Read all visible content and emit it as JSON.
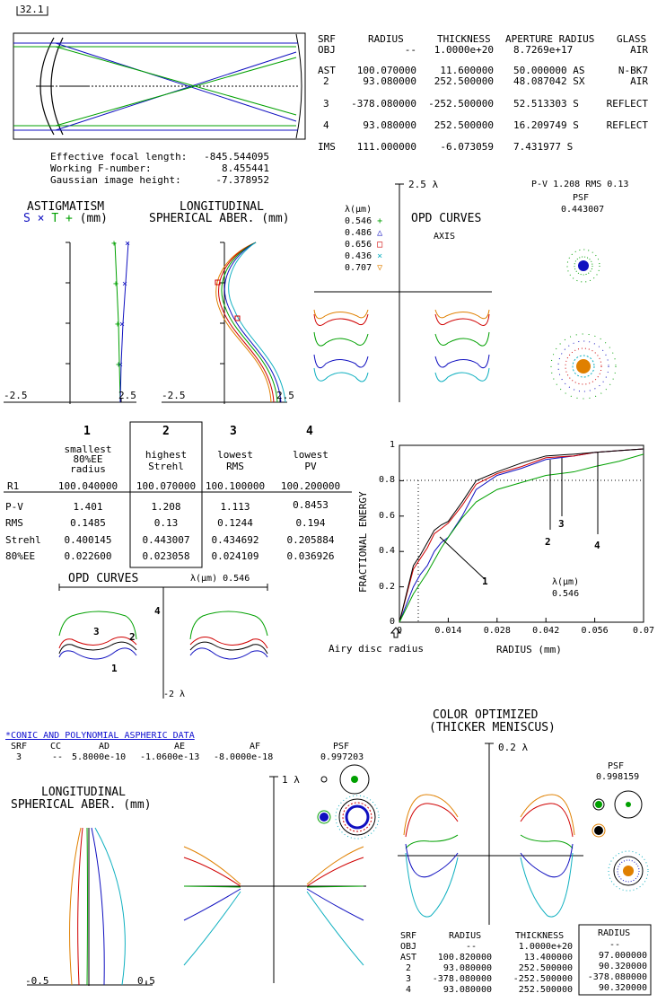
{
  "scale_label": "32.1",
  "prescription": {
    "headers": [
      "SRF",
      "RADIUS",
      "THICKNESS",
      "APERTURE RADIUS",
      "GLASS"
    ],
    "rows": [
      [
        "OBJ",
        "--",
        "1.0000e+20",
        "8.7269e+17",
        "AIR"
      ],
      [
        "AST",
        "100.070000",
        "11.600000",
        "50.000000 AS",
        "N-BK7"
      ],
      [
        "2",
        "93.080000",
        "252.500000",
        "48.087042 SX",
        "AIR"
      ],
      [
        "3",
        "-378.080000",
        "-252.500000",
        "52.513303 S",
        "REFLECT"
      ],
      [
        "4",
        "93.080000",
        "252.500000",
        "16.209749 S",
        "REFLECT"
      ],
      [
        "IMS",
        "111.000000",
        "-6.073059",
        "7.431977 S",
        ""
      ]
    ]
  },
  "system_props": [
    {
      "label": "Effective focal length:",
      "value": "-845.544095"
    },
    {
      "label": "Working F-number:",
      "value": "8.455441"
    },
    {
      "label": "Gaussian image height:",
      "value": "-7.378952"
    }
  ],
  "astig": {
    "title": "ASTIGMATISM",
    "legend_s": "S",
    "legend_x": "×",
    "legend_t": "T",
    "legend_plus": "+",
    "units": "(mm)",
    "xmin": "-2.5",
    "xmax": "2.5"
  },
  "lsa1": {
    "title1": "LONGITUDINAL",
    "title2": "SPHERICAL ABER.",
    "units": "(mm)",
    "xmin": "-2.5",
    "xmax": "2.5"
  },
  "opd1": {
    "scale": "2.5 λ",
    "title": "OPD CURVES",
    "subtitle": "AXIS",
    "lambda_label": "λ(μm)",
    "wavelengths": [
      {
        "value": "0.546",
        "sym": "+",
        "color": "#00a000"
      },
      {
        "value": "0.486",
        "sym": "△",
        "color": "#1010c0"
      },
      {
        "value": "0.656",
        "sym": "□",
        "color": "#d00000"
      },
      {
        "value": "0.436",
        "sym": "×",
        "color": "#10b0c0"
      },
      {
        "value": "0.707",
        "sym": "▽",
        "color": "#e08000"
      }
    ]
  },
  "psf1": {
    "pv_rms": "P-V 1.208 RMS 0.13",
    "title": "PSF",
    "strehl": "0.443007"
  },
  "compare": {
    "cols": [
      {
        "num": "1",
        "desc": [
          "smallest",
          "80%EE",
          "radius"
        ]
      },
      {
        "num": "2",
        "desc": [
          "highest",
          "Strehl"
        ]
      },
      {
        "num": "3",
        "desc": [
          "lowest",
          "RMS"
        ]
      },
      {
        "num": "4",
        "desc": [
          "lowest",
          "PV"
        ]
      }
    ],
    "rows": [
      {
        "label": "R1",
        "values": [
          "100.040000",
          "100.070000",
          "100.100000",
          "100.200000"
        ]
      },
      {
        "label": "P-V",
        "values": [
          "1.401",
          "1.208",
          "1.113",
          "0.8453"
        ]
      },
      {
        "label": "RMS",
        "values": [
          "0.1485",
          "0.13",
          "0.1244",
          "0.194"
        ]
      },
      {
        "label": "Strehl",
        "values": [
          "0.400145",
          "0.443007",
          "0.434692",
          "0.205884"
        ]
      },
      {
        "label": "80%EE",
        "values": [
          "0.022600",
          "0.023058",
          "0.024109",
          "0.036926"
        ]
      }
    ]
  },
  "opd2": {
    "title": "OPD CURVES",
    "lambda": "λ(μm) 0.546",
    "scale": "-2 λ",
    "labels": [
      "4",
      "3",
      "2",
      "1"
    ]
  },
  "ee": {
    "ylabel": "FRACTIONAL ENERGY",
    "xlabel": "RADIUS (mm)",
    "airy": "Airy disc radius",
    "yticks": [
      "0",
      "0.2",
      "0.4",
      "0.6",
      "0.8",
      "1"
    ],
    "xticks": [
      "0",
      "0.014",
      "0.028",
      "0.042",
      "0.056",
      "0.07"
    ],
    "lambda": "λ(μm)",
    "lambda_val": "0.546",
    "curve_labels": [
      "1",
      "2",
      "3",
      "4"
    ]
  },
  "chart_data": {
    "type": "line",
    "xlabel": "RADIUS (mm)",
    "ylabel": "FRACTIONAL ENERGY",
    "xlim": [
      0,
      0.07
    ],
    "ylim": [
      0,
      1
    ],
    "series": [
      {
        "name": "1",
        "color": "#1010c0",
        "x": [
          0,
          0.002,
          0.004,
          0.006,
          0.008,
          0.01,
          0.012,
          0.014,
          0.018,
          0.022,
          0.028,
          0.035,
          0.042,
          0.05,
          0.056,
          0.063,
          0.07
        ],
        "y": [
          0,
          0.1,
          0.2,
          0.27,
          0.32,
          0.4,
          0.45,
          0.48,
          0.6,
          0.75,
          0.83,
          0.87,
          0.92,
          0.94,
          0.96,
          0.97,
          0.98
        ]
      },
      {
        "name": "2",
        "color": "#d00000",
        "x": [
          0,
          0.002,
          0.004,
          0.006,
          0.008,
          0.01,
          0.012,
          0.014,
          0.018,
          0.022,
          0.028,
          0.035,
          0.042,
          0.05,
          0.056,
          0.063,
          0.07
        ],
        "y": [
          0,
          0.15,
          0.3,
          0.36,
          0.42,
          0.5,
          0.53,
          0.56,
          0.66,
          0.78,
          0.84,
          0.88,
          0.93,
          0.94,
          0.96,
          0.97,
          0.98
        ]
      },
      {
        "name": "3",
        "color": "#000000",
        "x": [
          0,
          0.002,
          0.004,
          0.006,
          0.008,
          0.01,
          0.012,
          0.014,
          0.018,
          0.022,
          0.028,
          0.035,
          0.042,
          0.05,
          0.056,
          0.063,
          0.07
        ],
        "y": [
          0,
          0.16,
          0.32,
          0.38,
          0.45,
          0.52,
          0.55,
          0.57,
          0.68,
          0.8,
          0.85,
          0.9,
          0.94,
          0.95,
          0.96,
          0.97,
          0.98
        ]
      },
      {
        "name": "4",
        "color": "#00a000",
        "x": [
          0,
          0.002,
          0.004,
          0.006,
          0.008,
          0.01,
          0.012,
          0.014,
          0.018,
          0.022,
          0.028,
          0.035,
          0.042,
          0.05,
          0.056,
          0.063,
          0.07
        ],
        "y": [
          0,
          0.08,
          0.16,
          0.22,
          0.28,
          0.35,
          0.42,
          0.48,
          0.59,
          0.68,
          0.75,
          0.79,
          0.83,
          0.85,
          0.88,
          0.91,
          0.95
        ]
      }
    ]
  },
  "asphere": {
    "title": "*CONIC AND POLYNOMIAL ASPHERIC DATA",
    "headers": [
      "SRF",
      "CC",
      "AD",
      "AE",
      "AF"
    ],
    "row": [
      "3",
      "--",
      "5.8000e-10",
      "-1.0600e-13",
      "-8.0000e-18"
    ]
  },
  "psf2": {
    "title": "PSF",
    "strehl": "0.997203"
  },
  "lsa2": {
    "title1": "LONGITUDINAL",
    "title2": "SPHERICAL ABER.",
    "units": "(mm)",
    "xmin": "-0.5",
    "xmax": "0.5"
  },
  "opd3": {
    "scale": "1 λ"
  },
  "color_opt": {
    "title1": "COLOR OPTIMIZED",
    "title2": "(THICKER MENISCUS)",
    "scale": "0.2 λ"
  },
  "psf3": {
    "title": "PSF",
    "strehl": "0.998159"
  },
  "table2": {
    "headers": [
      "SRF",
      "RADIUS",
      "THICKNESS"
    ],
    "rows": [
      [
        "OBJ",
        "--",
        "1.0000e+20"
      ],
      [
        "AST",
        "100.820000",
        "13.400000"
      ],
      [
        "2",
        "93.080000",
        "252.500000"
      ],
      [
        "3",
        "-378.080000",
        "-252.500000"
      ],
      [
        "4",
        "93.080000",
        "252.500000"
      ]
    ],
    "box_header": "RADIUS",
    "box_values": [
      "--",
      "97.000000",
      "90.320000",
      "-378.080000",
      "90.320000"
    ]
  }
}
